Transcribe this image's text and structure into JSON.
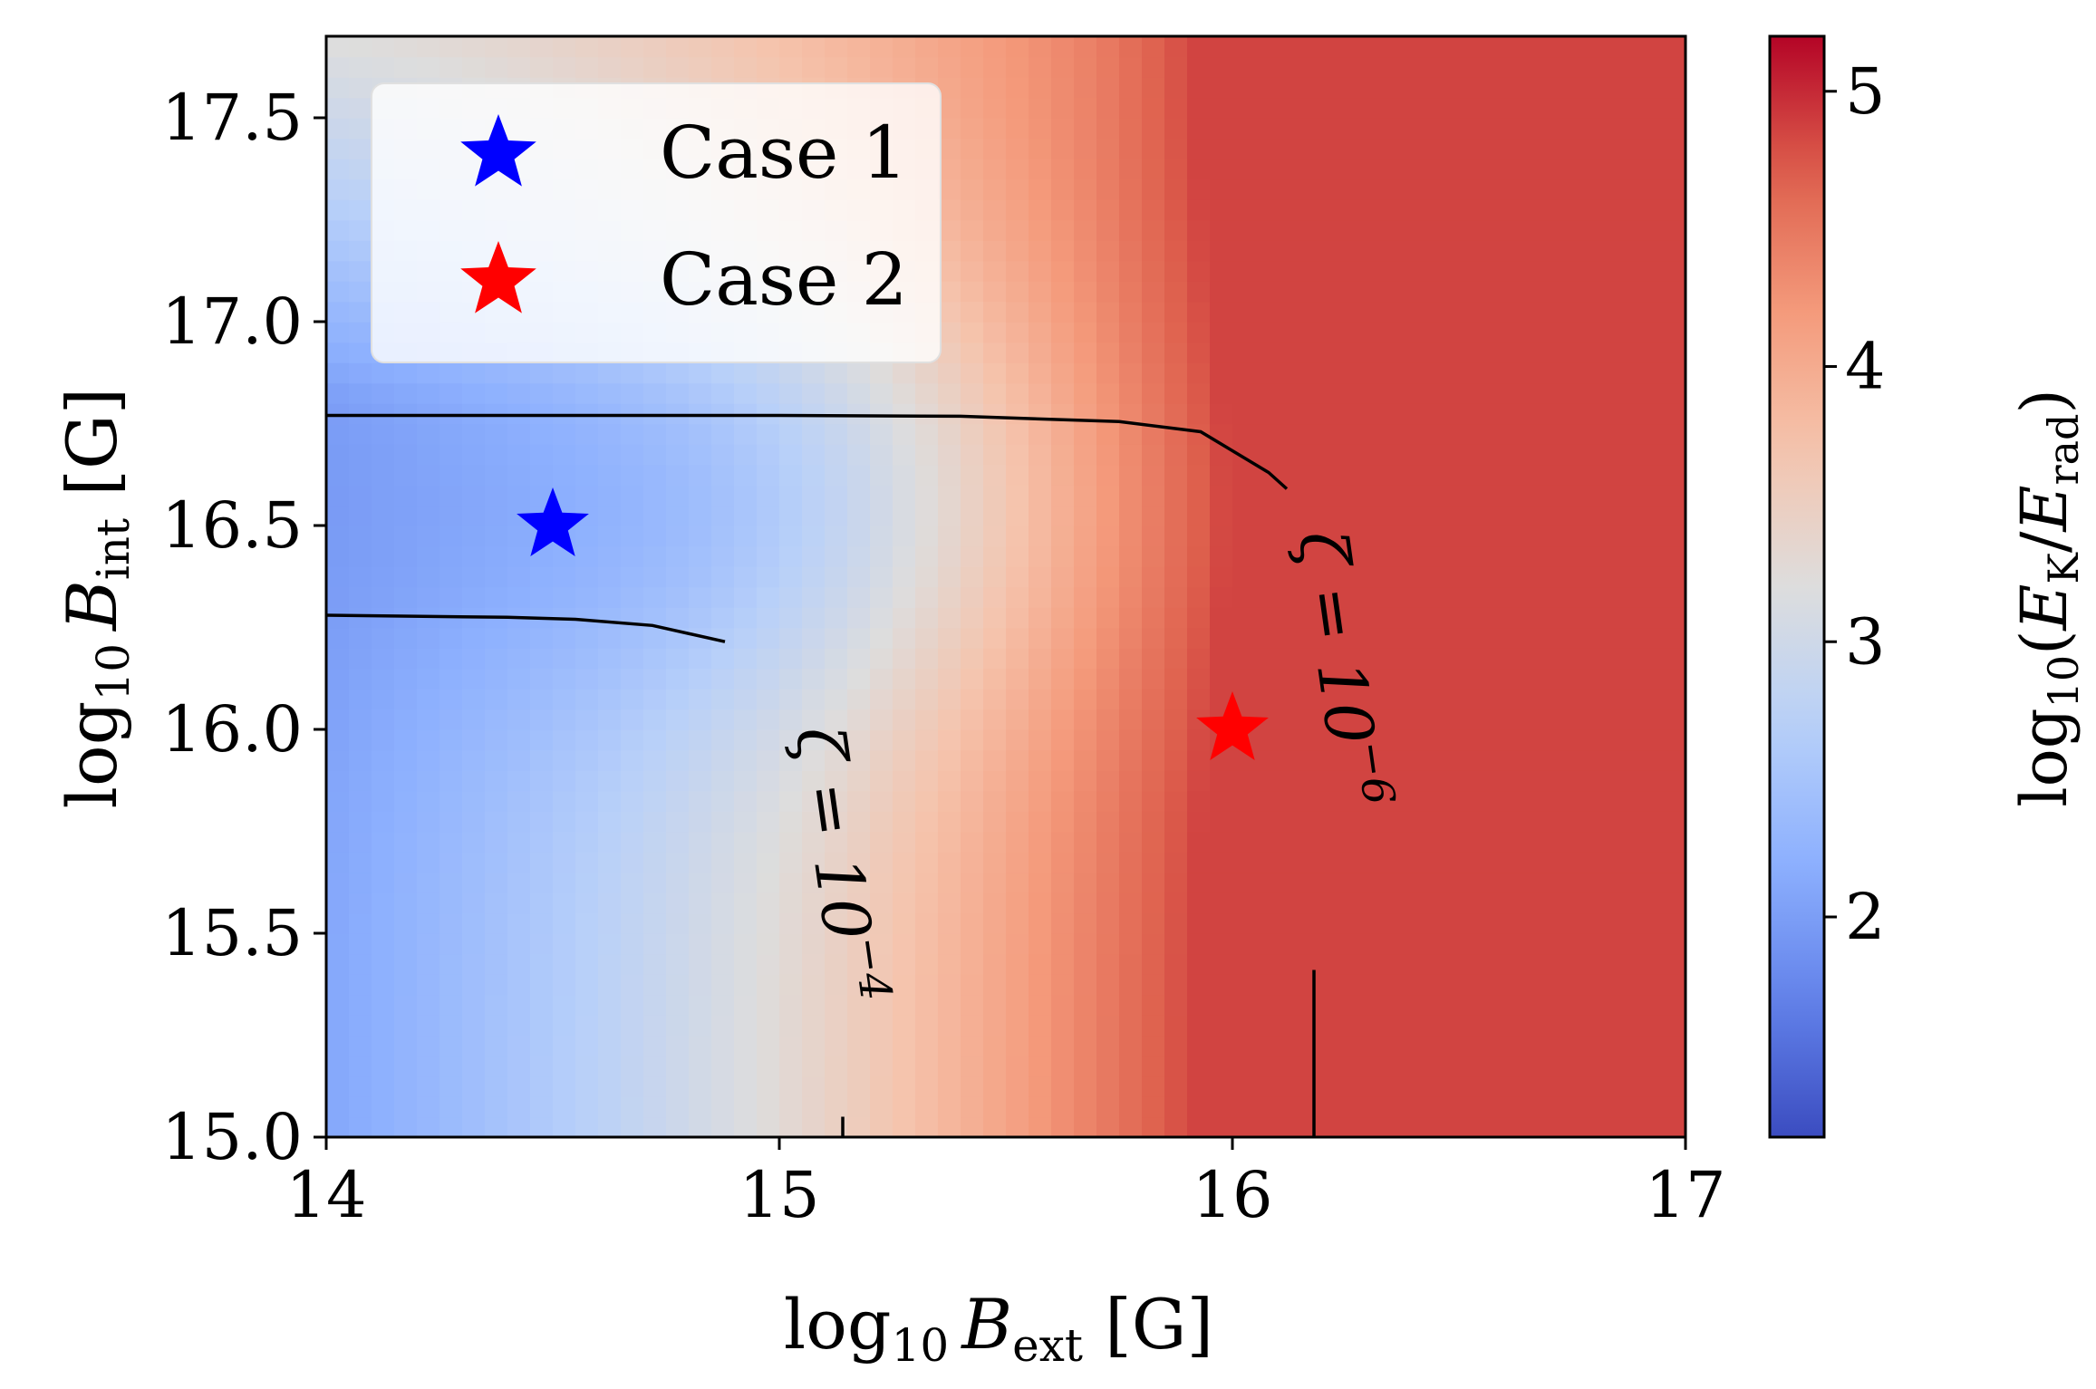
{
  "chart_data": {
    "type": "heatmap",
    "title": "",
    "xlabel": {
      "prefix": "log",
      "sub1": "10",
      "var": "B",
      "sub2": "ext",
      "suffix": " [G]"
    },
    "ylabel": {
      "prefix": "log",
      "sub1": "10",
      "var": "B",
      "sub2": "int",
      "suffix": " [G]"
    },
    "colorbar_label": {
      "prefix": "log",
      "sub1": "10",
      "num": "E",
      "num_sub": "K",
      "den": "E",
      "den_sub": "rad"
    },
    "xlim": [
      14,
      17
    ],
    "ylim": [
      15.0,
      17.7
    ],
    "xticks": [
      "14",
      "15",
      "16",
      "17"
    ],
    "yticks": [
      "15.0",
      "15.5",
      "16.0",
      "16.5",
      "17.0",
      "17.5"
    ],
    "colorbar": {
      "range": [
        1.2,
        5.2
      ],
      "ticks": [
        "2",
        "3",
        "4",
        "5"
      ],
      "colormap": "coolwarm"
    },
    "grid": false,
    "legend_position": "top-left",
    "points": [
      {
        "name": "Case 1",
        "x": 14.5,
        "y": 16.5,
        "color": "#0000ff",
        "marker": "star"
      },
      {
        "name": "Case 2",
        "x": 16.0,
        "y": 16.0,
        "color": "#ff0000",
        "marker": "star"
      }
    ],
    "contours": [
      {
        "label": {
          "base": "ζ = 10",
          "exp": "−4"
        },
        "segments": [
          [
            [
              14.0,
              16.28
            ],
            [
              14.4,
              16.275
            ],
            [
              14.55,
              16.27
            ],
            [
              14.72,
              16.255
            ],
            [
              14.88,
              16.215
            ]
          ],
          [
            [
              15.14,
              15.05
            ],
            [
              15.14,
              15.0
            ]
          ]
        ]
      },
      {
        "label": {
          "base": "ζ = 10",
          "exp": "−6"
        },
        "segments": [
          [
            [
              14.0,
              16.77
            ],
            [
              15.0,
              16.77
            ],
            [
              15.4,
              16.768
            ],
            [
              15.75,
              16.755
            ],
            [
              15.93,
              16.73
            ],
            [
              16.08,
              16.63
            ],
            [
              16.12,
              16.59
            ]
          ],
          [
            [
              16.18,
              15.41
            ],
            [
              16.18,
              15.0
            ]
          ]
        ]
      }
    ]
  }
}
